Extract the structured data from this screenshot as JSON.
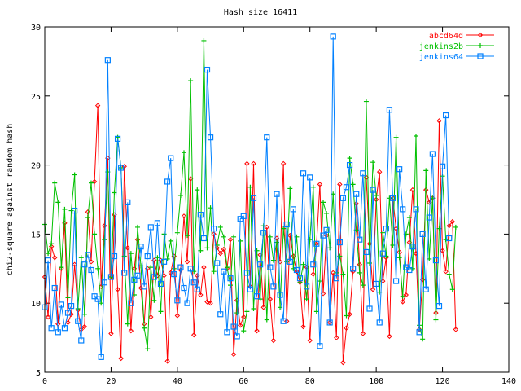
{
  "chart_data": {
    "type": "line",
    "title": "Hash size 16411",
    "xlabel": "",
    "ylabel": "chi2-square against random hash",
    "xlim": [
      0,
      140
    ],
    "ylim": [
      5,
      30
    ],
    "xticks": [
      "0",
      "20",
      "40",
      "60",
      "80",
      "100",
      "120",
      "140"
    ],
    "yticks": [
      "5",
      "10",
      "15",
      "20",
      "25",
      "30"
    ],
    "grid": false,
    "legend_position": "top-right",
    "series": [
      {
        "name": "abcd64d",
        "color": "#ff0000",
        "marker": "diamond",
        "values": [
          11.9,
          9,
          14.1,
          13.3,
          8.5,
          12.5,
          15.8,
          8.6,
          9.2,
          12.8,
          9.5,
          8.1,
          8.3,
          16.6,
          13,
          18.8,
          24.3,
          11.2,
          15.6,
          20.5,
          7.8,
          16.4,
          11,
          6,
          19.9,
          14,
          8,
          12.5,
          14.6,
          11.1,
          8.5,
          12.5,
          9,
          13.1,
          12,
          13.1,
          12,
          5.8,
          12.2,
          13.4,
          9.1,
          12.4,
          16.3,
          13,
          19,
          7.7,
          12,
          10.6,
          12.6,
          10.1,
          10,
          15,
          14,
          13.6,
          13.9,
          12.5,
          14.6,
          6.3,
          10.2,
          8.4,
          9,
          20.1,
          11.2,
          20.1,
          8,
          13.5,
          9.7,
          15.5,
          10.3,
          7.3,
          14.7,
          13,
          20.1,
          8.7,
          14.9,
          13.4,
          12.3,
          11.5,
          8.3,
          12.6,
          7.3,
          12.1,
          14.3,
          18.6,
          10.7,
          14.9,
          8.6,
          12.2,
          7.5,
          18.6,
          5.7,
          8.2,
          9.2,
          12.3,
          17.2,
          12.8,
          7.8,
          19.1,
          14.3,
          11,
          17.5,
          19.5,
          11.6,
          13.3,
          7.6,
          17.6,
          15.4,
          13.7,
          10.1,
          10.6,
          14.4,
          18.2,
          13.6,
          8.1,
          11.7,
          18.2,
          17.3,
          17.6,
          9.3,
          23.2,
          13.8,
          12.3,
          15.6,
          15.9,
          8.1
        ]
      },
      {
        "name": "jenkins2b",
        "color": "#00c000",
        "marker": "plus",
        "values": [
          15.7,
          13.6,
          14.3,
          18.7,
          17.3,
          12.6,
          16.8,
          10.4,
          16.7,
          19.3,
          9.6,
          13.3,
          9.2,
          16.2,
          18.7,
          15,
          12.5,
          10,
          14.6,
          19.5,
          11.9,
          18,
          22,
          19.8,
          13.4,
          8.5,
          13.6,
          10.6,
          15.5,
          12.7,
          8.2,
          6.7,
          12.6,
          10.2,
          13.3,
          9.4,
          15,
          13.2,
          14.5,
          12.5,
          15.1,
          17.8,
          20.9,
          14.9,
          26.1,
          12.3,
          18.2,
          13.8,
          29,
          14,
          16.9,
          12.3,
          14.2,
          15.5,
          14.8,
          12.6,
          11.3,
          14.8,
          9.3,
          14.5,
          8,
          9.4,
          18.4,
          9.6,
          13.8,
          10.3,
          15.6,
          8.8,
          14.8,
          13.1,
          14.4,
          9.7,
          15.4,
          13,
          18.3,
          12.5,
          14.8,
          11.5,
          12.8,
          10.3,
          14.6,
          18.4,
          9.4,
          11.6,
          17.3,
          16.5,
          14,
          17.9,
          12.2,
          13.4,
          12.1,
          9.1,
          20.5,
          18.6,
          15.3,
          12.2,
          11.3,
          24.6,
          12.9,
          20.2,
          17.8,
          10.8,
          15.1,
          13.4,
          17.6,
          14.2,
          22,
          13.3,
          10.5,
          15,
          16.2,
          12.5,
          22.1,
          8.4,
          7.4,
          19.6,
          13.2,
          17.6,
          8.8,
          15.4,
          19.2,
          14.6,
          12.1,
          11,
          15.5
        ]
      },
      {
        "name": "jenkins64",
        "color": "#0080ff",
        "marker": "square",
        "values": [
          9.7,
          13.1,
          8.2,
          11.1,
          7.9,
          9.9,
          8.2,
          9.3,
          9.8,
          16.7,
          8.7,
          7.3,
          12.8,
          13.5,
          12.4,
          10.5,
          10.3,
          6.1,
          11.5,
          27.6,
          11.9,
          13.4,
          21.9,
          19.8,
          12.2,
          17.3,
          10,
          11.7,
          12,
          14.1,
          11.2,
          13.4,
          15.5,
          11.9,
          15.8,
          11.4,
          13,
          18.8,
          20.5,
          12.1,
          10.2,
          12.6,
          11.1,
          10,
          12.5,
          11.5,
          11,
          16.4,
          14.7,
          26.9,
          22,
          15.4,
          12.9,
          9.2,
          12.3,
          7.9,
          11.8,
          8.3,
          7.6,
          16.1,
          16.3,
          12.2,
          11,
          17.6,
          10.5,
          12.8,
          15.1,
          22,
          12.6,
          11.2,
          17.9,
          10.6,
          8.7,
          15.7,
          13,
          16.8,
          12.4,
          11.8,
          19.4,
          11.2,
          19.1,
          12.8,
          14.3,
          6.9,
          14.9,
          15.3,
          8.6,
          29.3,
          11.8,
          14.4,
          17.6,
          18.4,
          20,
          12.5,
          17.9,
          14.6,
          19.4,
          13.7,
          9.6,
          18.2,
          11.4,
          8.6,
          13.6,
          15.4,
          24,
          17.6,
          11.6,
          19.7,
          16.8,
          12.6,
          12.4,
          14.1,
          16.8,
          7.9,
          15,
          11,
          16.2,
          20.8,
          13.1,
          9.8,
          19.9,
          23.6,
          14.7
        ]
      }
    ]
  }
}
